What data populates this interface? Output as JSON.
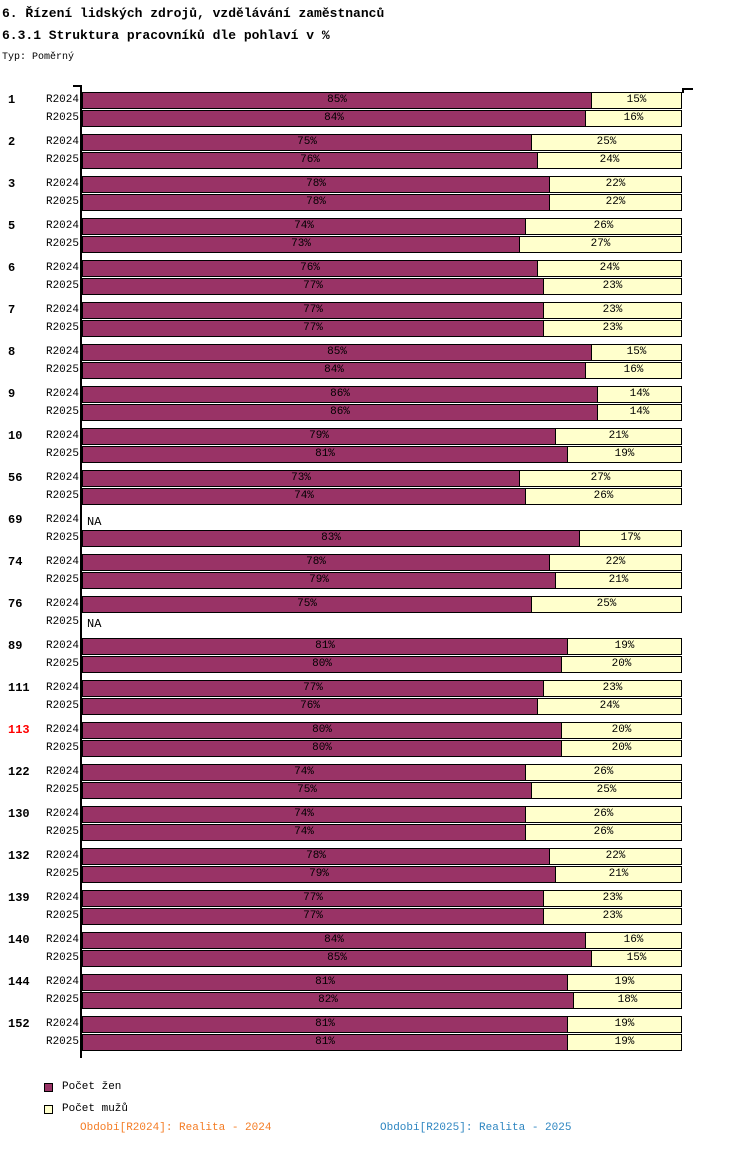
{
  "header": {
    "title": "6. Řízení lidských zdrojů, vzdělávání zaměstnanců",
    "subtitle": "6.3.1 Struktura pracovníků dle pohlaví v %",
    "type_label": "Typ: Poměrný"
  },
  "legend": {
    "items": [
      {
        "label": "Počet žen",
        "color": "#993366"
      },
      {
        "label": "Počet mužů",
        "color": "#FFFFCC"
      }
    ]
  },
  "footer": {
    "period_2024": {
      "text": "Období[R2024]: Realita - 2024",
      "color": "#F47C24"
    },
    "period_2025": {
      "text": "Období[R2025]: Realita - 2025",
      "color": "#2E86C1"
    }
  },
  "chart_data": {
    "type": "bar",
    "orientation": "horizontal-stacked",
    "xlim": [
      0,
      100
    ],
    "unit": "%",
    "na_label": "NA",
    "highlight_color": "#FF0000",
    "series_labels": [
      "Počet žen",
      "Počet mužů"
    ],
    "colors": {
      "women": "#993366",
      "men": "#FFFFCC"
    },
    "groups": [
      {
        "id": "1",
        "highlight": false,
        "rows": [
          {
            "period": "R2024",
            "women": 85,
            "men": 15
          },
          {
            "period": "R2025",
            "women": 84,
            "men": 16
          }
        ]
      },
      {
        "id": "2",
        "highlight": false,
        "rows": [
          {
            "period": "R2024",
            "women": 75,
            "men": 25
          },
          {
            "period": "R2025",
            "women": 76,
            "men": 24
          }
        ]
      },
      {
        "id": "3",
        "highlight": false,
        "rows": [
          {
            "period": "R2024",
            "women": 78,
            "men": 22
          },
          {
            "period": "R2025",
            "women": 78,
            "men": 22
          }
        ]
      },
      {
        "id": "5",
        "highlight": false,
        "rows": [
          {
            "period": "R2024",
            "women": 74,
            "men": 26
          },
          {
            "period": "R2025",
            "women": 73,
            "men": 27
          }
        ]
      },
      {
        "id": "6",
        "highlight": false,
        "rows": [
          {
            "period": "R2024",
            "women": 76,
            "men": 24
          },
          {
            "period": "R2025",
            "women": 77,
            "men": 23
          }
        ]
      },
      {
        "id": "7",
        "highlight": false,
        "rows": [
          {
            "period": "R2024",
            "women": 77,
            "men": 23
          },
          {
            "period": "R2025",
            "women": 77,
            "men": 23
          }
        ]
      },
      {
        "id": "8",
        "highlight": false,
        "rows": [
          {
            "period": "R2024",
            "women": 85,
            "men": 15
          },
          {
            "period": "R2025",
            "women": 84,
            "men": 16
          }
        ]
      },
      {
        "id": "9",
        "highlight": false,
        "rows": [
          {
            "period": "R2024",
            "women": 86,
            "men": 14
          },
          {
            "period": "R2025",
            "women": 86,
            "men": 14
          }
        ]
      },
      {
        "id": "10",
        "highlight": false,
        "rows": [
          {
            "period": "R2024",
            "women": 79,
            "men": 21
          },
          {
            "period": "R2025",
            "women": 81,
            "men": 19
          }
        ]
      },
      {
        "id": "56",
        "highlight": false,
        "rows": [
          {
            "period": "R2024",
            "women": 73,
            "men": 27
          },
          {
            "period": "R2025",
            "women": 74,
            "men": 26
          }
        ]
      },
      {
        "id": "69",
        "highlight": false,
        "rows": [
          {
            "period": "R2024",
            "na": true
          },
          {
            "period": "R2025",
            "women": 83,
            "men": 17
          }
        ]
      },
      {
        "id": "74",
        "highlight": false,
        "rows": [
          {
            "period": "R2024",
            "women": 78,
            "men": 22
          },
          {
            "period": "R2025",
            "women": 79,
            "men": 21
          }
        ]
      },
      {
        "id": "76",
        "highlight": false,
        "rows": [
          {
            "period": "R2024",
            "women": 75,
            "men": 25
          },
          {
            "period": "R2025",
            "na": true
          }
        ]
      },
      {
        "id": "89",
        "highlight": false,
        "rows": [
          {
            "period": "R2024",
            "women": 81,
            "men": 19
          },
          {
            "period": "R2025",
            "women": 80,
            "men": 20
          }
        ]
      },
      {
        "id": "111",
        "highlight": false,
        "rows": [
          {
            "period": "R2024",
            "women": 77,
            "men": 23
          },
          {
            "period": "R2025",
            "women": 76,
            "men": 24
          }
        ]
      },
      {
        "id": "113",
        "highlight": true,
        "rows": [
          {
            "period": "R2024",
            "women": 80,
            "men": 20
          },
          {
            "period": "R2025",
            "women": 80,
            "men": 20
          }
        ]
      },
      {
        "id": "122",
        "highlight": false,
        "rows": [
          {
            "period": "R2024",
            "women": 74,
            "men": 26
          },
          {
            "period": "R2025",
            "women": 75,
            "men": 25
          }
        ]
      },
      {
        "id": "130",
        "highlight": false,
        "rows": [
          {
            "period": "R2024",
            "women": 74,
            "men": 26
          },
          {
            "period": "R2025",
            "women": 74,
            "men": 26
          }
        ]
      },
      {
        "id": "132",
        "highlight": false,
        "rows": [
          {
            "period": "R2024",
            "women": 78,
            "men": 22
          },
          {
            "period": "R2025",
            "women": 79,
            "men": 21
          }
        ]
      },
      {
        "id": "139",
        "highlight": false,
        "rows": [
          {
            "period": "R2024",
            "women": 77,
            "men": 23
          },
          {
            "period": "R2025",
            "women": 77,
            "men": 23
          }
        ]
      },
      {
        "id": "140",
        "highlight": false,
        "rows": [
          {
            "period": "R2024",
            "women": 84,
            "men": 16
          },
          {
            "period": "R2025",
            "women": 85,
            "men": 15
          }
        ]
      },
      {
        "id": "144",
        "highlight": false,
        "rows": [
          {
            "period": "R2024",
            "women": 81,
            "men": 19
          },
          {
            "period": "R2025",
            "women": 82,
            "men": 18
          }
        ]
      },
      {
        "id": "152",
        "highlight": false,
        "rows": [
          {
            "period": "R2024",
            "women": 81,
            "men": 19
          },
          {
            "period": "R2025",
            "women": 81,
            "men": 19
          }
        ]
      }
    ]
  }
}
